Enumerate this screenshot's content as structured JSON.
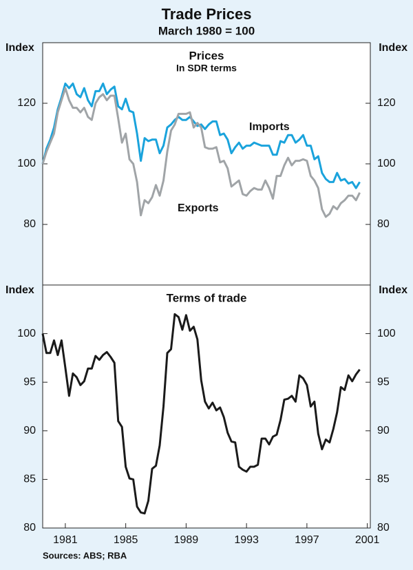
{
  "title": "Trade Prices",
  "subtitle": "March 1980 = 100",
  "sources": "Sources: ABS; RBA",
  "chart_data": [
    {
      "type": "line",
      "title": "Prices",
      "subtitle": "In SDR terms",
      "y_axis_label": "Index",
      "x": [
        1980,
        1980.25,
        1980.5,
        1980.75,
        1981,
        1981.25,
        1981.5,
        1981.75,
        1982,
        1982.25,
        1982.5,
        1982.75,
        1983,
        1983.25,
        1983.5,
        1983.75,
        1984,
        1984.25,
        1984.5,
        1984.75,
        1985,
        1985.25,
        1985.5,
        1985.75,
        1986,
        1986.25,
        1986.5,
        1986.75,
        1987,
        1987.25,
        1987.5,
        1987.75,
        1988,
        1988.25,
        1988.5,
        1988.75,
        1989,
        1989.25,
        1989.5,
        1989.75,
        1990,
        1990.25,
        1990.5,
        1990.75,
        1991,
        1991.25,
        1991.5,
        1991.75,
        1992,
        1992.25,
        1992.5,
        1992.75,
        1993,
        1993.25,
        1993.5,
        1993.75,
        1994,
        1994.25,
        1994.5,
        1994.75,
        1995,
        1995.25,
        1995.5,
        1995.75,
        1996,
        1996.25,
        1996.5,
        1996.75,
        1997,
        1997.25,
        1997.5,
        1997.75,
        1998,
        1998.25,
        1998.5,
        1998.75,
        1999,
        1999.25,
        1999.5,
        1999.75,
        2000,
        2000.25,
        2000.5,
        2000.75,
        2001
      ],
      "series": [
        {
          "name": "Imports",
          "color": "#1aa3dc",
          "values": [
            100,
            105,
            108,
            112,
            118,
            122,
            126.5,
            125,
            126.5,
            123,
            122,
            125,
            121,
            119,
            124,
            124,
            126.5,
            123,
            124.5,
            125.5,
            119,
            118,
            121.5,
            117.5,
            117,
            110,
            101,
            108.5,
            107.5,
            108,
            108,
            103.5,
            106,
            112,
            113,
            114.5,
            115.5,
            114.5,
            114.5,
            115.5,
            114,
            112.5,
            113,
            111.5,
            113,
            114,
            114,
            109.5,
            110,
            108,
            103.5,
            105.5,
            107,
            105,
            106,
            106,
            107,
            106.5,
            106,
            106,
            106,
            103,
            103,
            107.5,
            107,
            109.5,
            109.5,
            107,
            108,
            109.5,
            106,
            106,
            101.5,
            102.5,
            97,
            95,
            94,
            94,
            97,
            94.5,
            95,
            93.5,
            94,
            92,
            94
          ]
        },
        {
          "name": "Exports",
          "color": "#a0a4a7",
          "values": [
            100,
            104,
            107,
            110,
            117,
            121,
            125,
            121,
            118.5,
            118.5,
            117,
            118.5,
            115.5,
            114.5,
            120,
            122,
            123,
            121,
            122.5,
            122.5,
            115,
            107,
            110,
            101.5,
            100,
            94,
            83,
            88,
            87,
            89,
            93,
            89.5,
            94.5,
            104,
            111,
            113,
            116.5,
            116.5,
            116.5,
            117,
            112,
            113.5,
            112,
            105.5,
            105,
            105,
            105.5,
            100.5,
            101,
            98.5,
            92.5,
            93.5,
            94.5,
            90,
            89.5,
            91,
            92,
            91.5,
            91.5,
            94.5,
            92,
            88.5,
            96,
            96,
            99.5,
            102,
            99.5,
            101,
            101,
            101.5,
            101,
            96,
            94.5,
            92,
            85,
            82.5,
            83.5,
            86,
            85,
            87,
            88,
            89.5,
            89.5,
            88,
            90.5
          ]
        }
      ],
      "xlim": [
        1980,
        2001.7
      ],
      "ylim": [
        60,
        140
      ],
      "yticks": [
        80,
        100,
        120
      ]
    },
    {
      "type": "line",
      "title": "Terms of trade",
      "y_axis_label": "Index",
      "x": [
        1980,
        1980.25,
        1980.5,
        1980.75,
        1981,
        1981.25,
        1981.5,
        1981.75,
        1982,
        1982.25,
        1982.5,
        1982.75,
        1983,
        1983.25,
        1983.5,
        1983.75,
        1984,
        1984.25,
        1984.5,
        1984.75,
        1985,
        1985.25,
        1985.5,
        1985.75,
        1986,
        1986.25,
        1986.5,
        1986.75,
        1987,
        1987.25,
        1987.5,
        1987.75,
        1988,
        1988.25,
        1988.5,
        1988.75,
        1989,
        1989.25,
        1989.5,
        1989.75,
        1990,
        1990.25,
        1990.5,
        1990.75,
        1991,
        1991.25,
        1991.5,
        1991.75,
        1992,
        1992.25,
        1992.5,
        1992.75,
        1993,
        1993.25,
        1993.5,
        1993.75,
        1994,
        1994.25,
        1994.5,
        1994.75,
        1995,
        1995.25,
        1995.5,
        1995.75,
        1996,
        1996.25,
        1996.5,
        1996.75,
        1997,
        1997.25,
        1997.5,
        1997.75,
        1998,
        1998.25,
        1998.5,
        1998.75,
        1999,
        1999.25,
        1999.5,
        1999.75,
        2000,
        2000.25,
        2000.5,
        2000.75,
        2001
      ],
      "series": [
        {
          "name": "Terms of trade",
          "color": "#1a1a1a",
          "values": [
            100,
            98,
            98,
            99.3,
            97.8,
            99.3,
            96.5,
            93.6,
            95.9,
            95.5,
            94.7,
            95.1,
            96.4,
            96.4,
            97.7,
            97.3,
            97.8,
            98.1,
            97.6,
            97,
            91,
            90.4,
            86.3,
            85.1,
            85,
            82.2,
            81.6,
            81.5,
            82.8,
            86.1,
            86.4,
            88.5,
            92.5,
            98,
            98.4,
            102,
            101.7,
            100.4,
            101.9,
            100.3,
            100.7,
            99.4,
            95.2,
            93,
            92.3,
            92.9,
            92.1,
            92.4,
            91.4,
            89.8,
            88.9,
            88.8,
            86.3,
            86,
            85.8,
            86.3,
            86.3,
            86.5,
            89.2,
            89.2,
            88.6,
            89.4,
            89.6,
            91.1,
            93.2,
            93.3,
            93.6,
            93,
            95.7,
            95.4,
            94.7,
            92.5,
            93,
            89.7,
            88.1,
            89.1,
            88.8,
            90.2,
            91.9,
            94.5,
            94.2,
            95.7,
            95.1,
            95.8,
            96.3
          ]
        }
      ],
      "xlim": [
        1980,
        2001.7
      ],
      "ylim": [
        80,
        105
      ],
      "yticks": [
        80,
        85,
        90,
        95,
        100
      ],
      "xticks": [
        {
          "value": 1981.5,
          "label": "1981"
        },
        {
          "value": 1985.5,
          "label": "1985"
        },
        {
          "value": 1989.5,
          "label": "1989"
        },
        {
          "value": 1993.5,
          "label": "1993"
        },
        {
          "value": 1997.5,
          "label": "1997"
        },
        {
          "value": 2001.5,
          "label": "2001"
        }
      ]
    }
  ]
}
